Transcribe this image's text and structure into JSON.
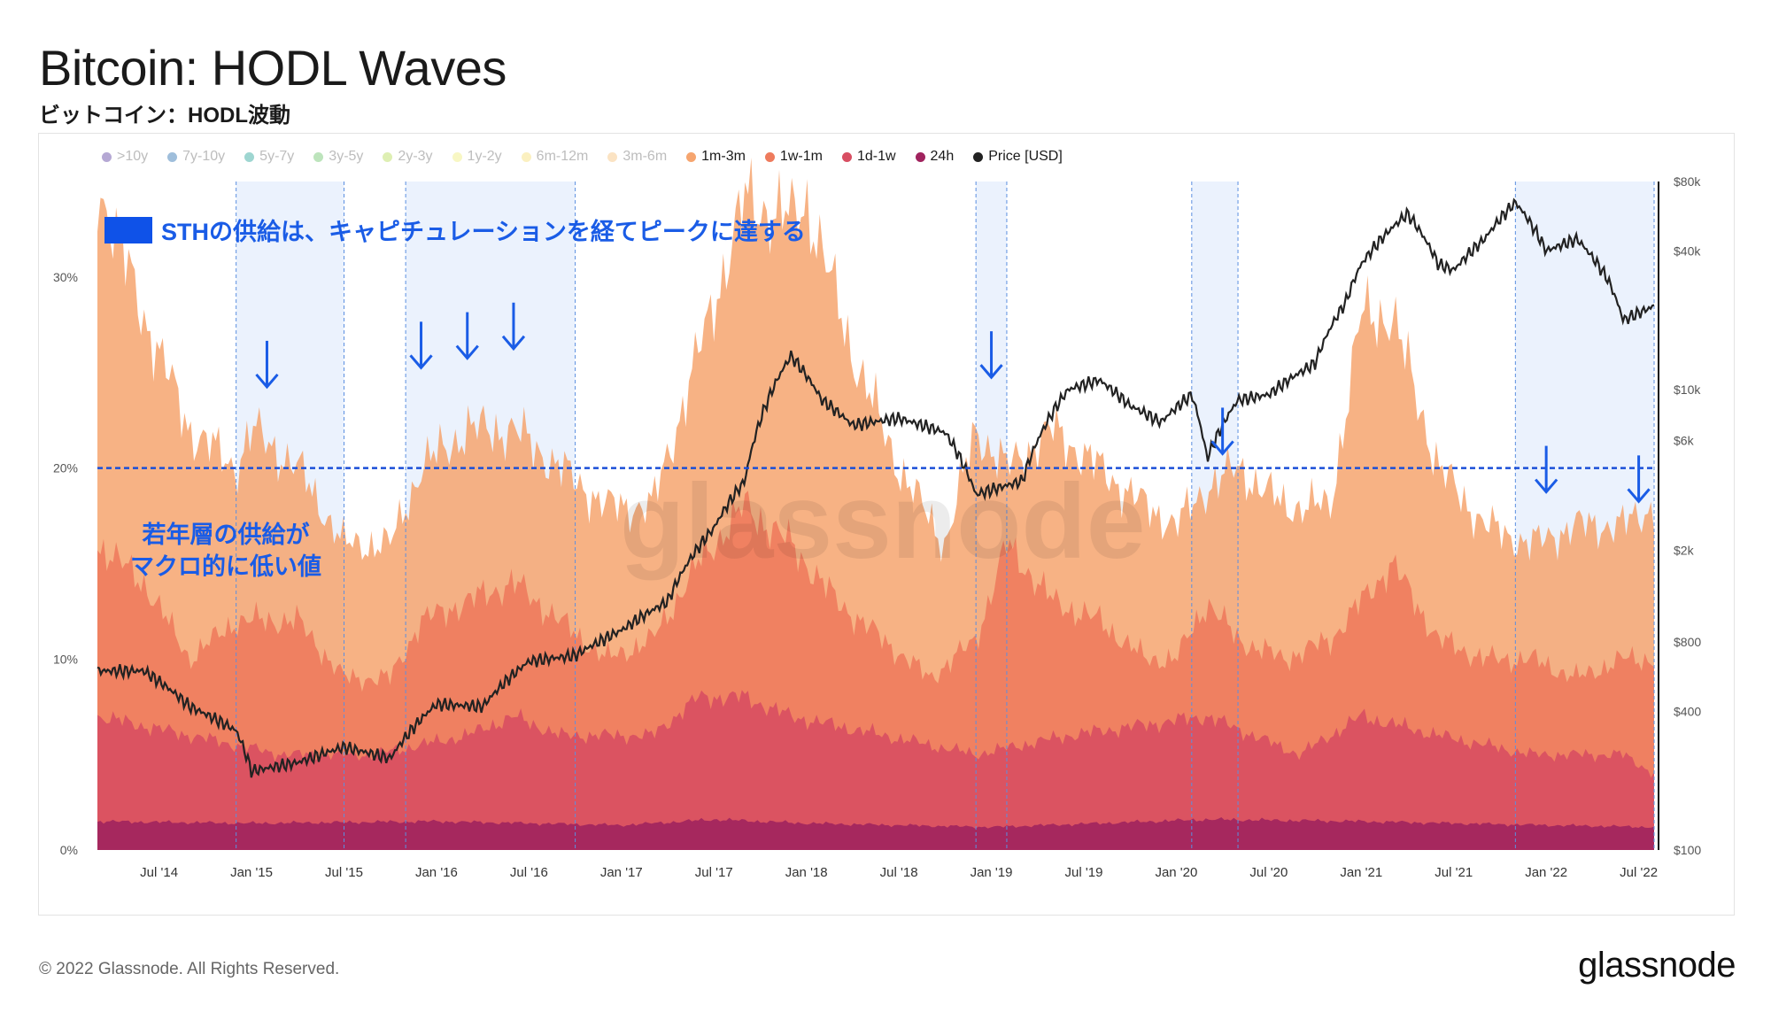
{
  "title": "Bitcoin: HODL Waves",
  "subtitle": "ビットコイン：HODL波動",
  "watermark": "glassnode",
  "footer": "© 2022 Glassnode. All Rights Reserved.",
  "brand": "glassnode",
  "annotations": {
    "sth": "STHの供給は、キャピチュレーションを経てピークに達する",
    "young_line1": "若年層の供給が",
    "young_line2": "マクロ的に低い値",
    "young_level_pct": 20
  },
  "legend": [
    {
      "label": ">10y",
      "color": "#5b3fa0",
      "active": false
    },
    {
      "label": "7y-10y",
      "color": "#2b6fb0",
      "active": false
    },
    {
      "label": "5y-7y",
      "color": "#28a59a",
      "active": false
    },
    {
      "label": "3y-5y",
      "color": "#6cc46a",
      "active": false
    },
    {
      "label": "2y-3y",
      "color": "#b5dc56",
      "active": false
    },
    {
      "label": "1y-2y",
      "color": "#f0ee7d",
      "active": false
    },
    {
      "label": "6m-12m",
      "color": "#f6dd74",
      "active": false
    },
    {
      "label": "3m-6m",
      "color": "#f7c27a",
      "active": false
    },
    {
      "label": "1m-3m",
      "color": "#f6a56f",
      "active": true
    },
    {
      "label": "1w-1m",
      "color": "#ee7b5d",
      "active": true
    },
    {
      "label": "1d-1w",
      "color": "#d84e62",
      "active": true
    },
    {
      "label": "24h",
      "color": "#a0235e",
      "active": true
    },
    {
      "label": "Price [USD]",
      "color": "#222222",
      "active": true
    }
  ],
  "chart_data": {
    "type": "area",
    "title": "Bitcoin: HODL Waves",
    "x_ticks": [
      "Jul '14",
      "Jan '15",
      "Jul '15",
      "Jan '16",
      "Jul '16",
      "Jan '17",
      "Jul '17",
      "Jan '18",
      "Jul '18",
      "Jan '19",
      "Jul '19",
      "Jan '20",
      "Jul '20",
      "Jan '21",
      "Jul '21",
      "Jan '22",
      "Jul '22"
    ],
    "y_left_ticks": [
      "0%",
      "10%",
      "20%",
      "30%"
    ],
    "y_left_range": [
      0,
      35
    ],
    "y_right_ticks": [
      "$100",
      "$400",
      "$800",
      "$2k",
      "$6k",
      "$10k",
      "$40k",
      "$80k"
    ],
    "y_right_scale": "log",
    "y_right_range": [
      100,
      80000
    ],
    "x_range": [
      "2014-03",
      "2022-08"
    ],
    "highlight_periods": [
      [
        "2014-12",
        "2015-07"
      ],
      [
        "2015-11",
        "2016-10"
      ],
      [
        "2018-12",
        "2019-02"
      ],
      [
        "2020-02",
        "2020-05"
      ],
      [
        "2021-11",
        "2022-08"
      ]
    ],
    "series": [
      {
        "name": "1m-3m",
        "color": "#f6a56f",
        "x": [
          "2014-03",
          "2014-06",
          "2014-09",
          "2014-12",
          "2015-01",
          "2015-04",
          "2015-07",
          "2015-10",
          "2015-12",
          "2016-03",
          "2016-06",
          "2016-09",
          "2016-12",
          "2017-03",
          "2017-06",
          "2017-09",
          "2017-12",
          "2018-01",
          "2018-04",
          "2018-07",
          "2018-10",
          "2018-12",
          "2019-02",
          "2019-05",
          "2019-08",
          "2019-11",
          "2020-01",
          "2020-03",
          "2020-05",
          "2020-08",
          "2020-11",
          "2021-01",
          "2021-03",
          "2021-06",
          "2021-09",
          "2021-12",
          "2022-03",
          "2022-06",
          "2022-08"
        ],
        "values": [
          35,
          28,
          22,
          20,
          22,
          20,
          16,
          16,
          20,
          22,
          22,
          20,
          18,
          18,
          26,
          34,
          33,
          34,
          26,
          20,
          16,
          22,
          20,
          22,
          20,
          18,
          17,
          19,
          20,
          18,
          18,
          28,
          28,
          20,
          17,
          16,
          17,
          17,
          18
        ]
      },
      {
        "name": "1w-1m",
        "color": "#ee7b5d",
        "x": [
          "2014-03",
          "2014-06",
          "2014-09",
          "2014-12",
          "2015-04",
          "2015-07",
          "2015-10",
          "2015-12",
          "2016-03",
          "2016-06",
          "2016-09",
          "2016-12",
          "2017-03",
          "2017-06",
          "2017-09",
          "2017-12",
          "2018-03",
          "2018-06",
          "2018-09",
          "2018-12",
          "2019-02",
          "2019-05",
          "2019-08",
          "2019-11",
          "2020-01",
          "2020-03",
          "2020-05",
          "2020-08",
          "2020-11",
          "2021-01",
          "2021-03",
          "2021-06",
          "2021-09",
          "2021-12",
          "2022-03",
          "2022-06",
          "2022-08"
        ],
        "values": [
          16,
          14,
          10,
          12,
          12,
          9,
          9,
          12,
          13,
          14,
          12,
          10,
          11,
          15,
          18,
          16,
          13,
          11,
          9,
          11,
          16,
          13,
          12,
          10,
          10,
          13,
          11,
          10,
          11,
          13,
          15,
          11,
          10,
          10,
          9,
          10,
          10
        ]
      },
      {
        "name": "1d-1w",
        "color": "#d84e62",
        "x": [
          "2014-03",
          "2014-09",
          "2015-03",
          "2015-09",
          "2016-03",
          "2016-06",
          "2016-09",
          "2017-03",
          "2017-06",
          "2017-09",
          "2017-12",
          "2018-06",
          "2018-12",
          "2019-06",
          "2020-03",
          "2020-09",
          "2021-01",
          "2021-06",
          "2021-12",
          "2022-06",
          "2022-08"
        ],
        "values": [
          7,
          6,
          5,
          5,
          6,
          7,
          6,
          6,
          8,
          8,
          7,
          6,
          5,
          6,
          7,
          5,
          7,
          6,
          5,
          5,
          4
        ]
      },
      {
        "name": "24h",
        "color": "#a0235e",
        "x": [
          "2014-03",
          "2015-01",
          "2016-01",
          "2017-01",
          "2017-07",
          "2018-01",
          "2019-01",
          "2020-03",
          "2021-01",
          "2022-01",
          "2022-08"
        ],
        "values": [
          1.5,
          1.4,
          1.5,
          1.3,
          1.6,
          1.4,
          1.2,
          1.6,
          1.5,
          1.3,
          1.2
        ]
      },
      {
        "name": "Price [USD]",
        "color": "#222222",
        "axis": "right",
        "x": [
          "2014-03",
          "2014-06",
          "2014-09",
          "2014-12",
          "2015-01",
          "2015-04",
          "2015-07",
          "2015-10",
          "2016-01",
          "2016-04",
          "2016-07",
          "2016-10",
          "2017-01",
          "2017-04",
          "2017-07",
          "2017-09",
          "2017-12",
          "2018-02",
          "2018-04",
          "2018-07",
          "2018-10",
          "2018-12",
          "2019-03",
          "2019-06",
          "2019-08",
          "2019-10",
          "2019-12",
          "2020-02",
          "2020-03",
          "2020-05",
          "2020-07",
          "2020-10",
          "2020-12",
          "2021-01",
          "2021-04",
          "2021-06",
          "2021-07",
          "2021-09",
          "2021-11",
          "2022-01",
          "2022-03",
          "2022-05",
          "2022-06",
          "2022-08"
        ],
        "values": [
          600,
          600,
          420,
          330,
          220,
          240,
          280,
          250,
          430,
          420,
          660,
          700,
          900,
          1200,
          2500,
          4000,
          14000,
          9000,
          7000,
          7500,
          6500,
          3500,
          4000,
          10000,
          11000,
          8500,
          7200,
          9500,
          5000,
          9000,
          9500,
          13000,
          24000,
          35000,
          58000,
          35000,
          33000,
          45000,
          65000,
          40000,
          45000,
          30000,
          20000,
          23000
        ]
      }
    ]
  }
}
